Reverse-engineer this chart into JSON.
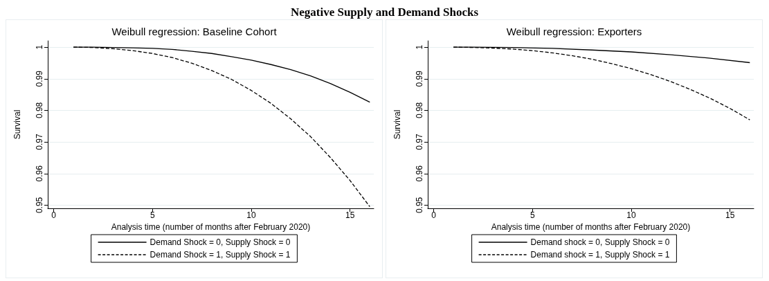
{
  "chart_data": [
    {
      "type": "line",
      "title": "Weibull regression: Baseline Cohort",
      "xlabel": "Analysis time (number of months after February 2020)",
      "ylabel": "Survival",
      "annotations": [
        "Negative Supply and Demand Shocks"
      ],
      "xlim": [
        -0.3,
        16.2
      ],
      "xticks": [
        0,
        5,
        10,
        15
      ],
      "ylim": [
        0.949,
        1.002
      ],
      "yticks": [
        0.95,
        0.96,
        0.97,
        0.98,
        0.99,
        1
      ],
      "grid": "y",
      "legend": "bottom",
      "marker": "none",
      "series": [
        {
          "name": "Demand Shock = 0, Supply Shock = 0",
          "color": "#000000",
          "line_style": "solid",
          "x": [
            1,
            2,
            3,
            4,
            5,
            6,
            7,
            8,
            9,
            10,
            11,
            12,
            13,
            14,
            15,
            16
          ],
          "values": [
            1,
            1,
            0.9999,
            0.9998,
            0.9996,
            0.9993,
            0.9987,
            0.998,
            0.997,
            0.9959,
            0.9945,
            0.9929,
            0.9909,
            0.9885,
            0.9857,
            0.9826
          ]
        },
        {
          "name": "Demand Shock = 1, Supply Shock = 1",
          "color": "#000000",
          "line_style": "dashed",
          "x": [
            1,
            2,
            3,
            4,
            5,
            6,
            7,
            8,
            9,
            10,
            11,
            12,
            13,
            14,
            15,
            16
          ],
          "values": [
            1,
            0.9999,
            0.9995,
            0.9989,
            0.998,
            0.9967,
            0.9949,
            0.9926,
            0.9898,
            0.9863,
            0.9822,
            0.9773,
            0.9717,
            0.9651,
            0.9578,
            0.9495
          ]
        }
      ]
    },
    {
      "type": "line",
      "title": "Weibull regression: Exporters",
      "xlabel": "Analysis time (number of months after February 2020)",
      "ylabel": "Survival",
      "xlim": [
        -0.3,
        16.2
      ],
      "xticks": [
        0,
        5,
        10,
        15
      ],
      "ylim": [
        0.949,
        1.002
      ],
      "yticks": [
        0.95,
        0.96,
        0.97,
        0.98,
        0.99,
        1
      ],
      "grid": "y",
      "legend": "bottom",
      "marker": "none",
      "series": [
        {
          "name": "Demand shock = 0, Supply Shock = 0",
          "color": "#000000",
          "line_style": "solid",
          "x": [
            1,
            2,
            4,
            6,
            8,
            10,
            12,
            14,
            16
          ],
          "values": [
            1,
            1,
            0.9999,
            0.9996,
            0.9991,
            0.9985,
            0.9976,
            0.9965,
            0.9951
          ]
        },
        {
          "name": "Demand shock = 1, Supply Shock = 1",
          "color": "#000000",
          "line_style": "dashed",
          "x": [
            1,
            2,
            3,
            4,
            5,
            6,
            7,
            8,
            9,
            10,
            11,
            12,
            13,
            14,
            15,
            16
          ],
          "values": [
            1,
            0.9999,
            0.9997,
            0.9994,
            0.9989,
            0.9982,
            0.9973,
            0.9962,
            0.9948,
            0.9932,
            0.9913,
            0.9891,
            0.9866,
            0.9838,
            0.9806,
            0.977
          ]
        }
      ]
    }
  ]
}
